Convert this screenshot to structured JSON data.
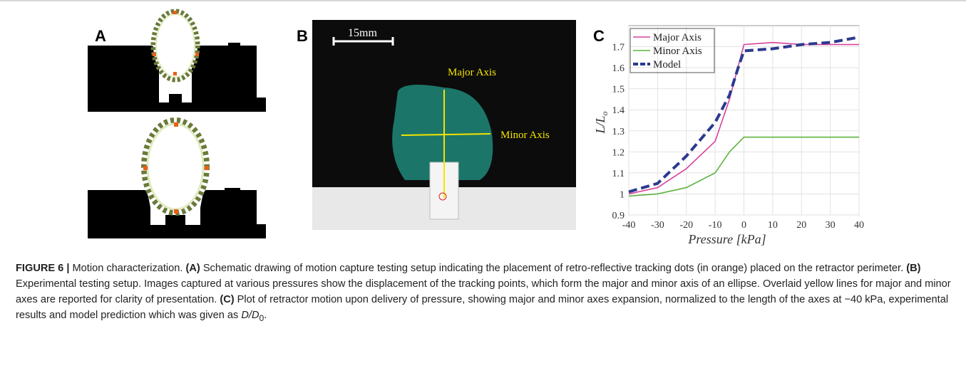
{
  "figure": {
    "panel_a": {
      "label": "A"
    },
    "panel_b": {
      "label": "B",
      "scale_bar": "15mm",
      "major_label": "Major Axis",
      "minor_label": "Minor Axis"
    },
    "panel_c": {
      "label": "C",
      "type": "line",
      "x_label": "Pressure [kPa]",
      "y_label": "L/L",
      "y_label_sub": "o",
      "xlim": [
        -40,
        40
      ],
      "xticks": [
        -40,
        -30,
        -20,
        -10,
        0,
        10,
        20,
        30,
        40
      ],
      "ylim": [
        0.9,
        1.8
      ],
      "yticks": [
        0.9,
        1,
        1.1,
        1.2,
        1.3,
        1.4,
        1.5,
        1.6,
        1.7
      ],
      "grid": true,
      "legend": "top-left",
      "series": [
        {
          "name": "Major Axis",
          "color": "#d6439a",
          "dash": false,
          "x": [
            -40,
            -30,
            -20,
            -10,
            -5,
            0,
            10,
            20,
            30,
            40
          ],
          "values": [
            1.0,
            1.03,
            1.12,
            1.25,
            1.45,
            1.71,
            1.72,
            1.71,
            1.71,
            1.71
          ]
        },
        {
          "name": "Minor Axis",
          "color": "#5db33f",
          "dash": false,
          "x": [
            -40,
            -30,
            -20,
            -10,
            -5,
            0,
            10,
            20,
            30,
            40
          ],
          "values": [
            0.99,
            1.0,
            1.03,
            1.1,
            1.2,
            1.27,
            1.27,
            1.27,
            1.27,
            1.27
          ]
        },
        {
          "name": "Model",
          "color": "#2b3a8f",
          "dash": true,
          "x": [
            -40,
            -30,
            -20,
            -10,
            -5,
            -2,
            0,
            10,
            20,
            30,
            40
          ],
          "values": [
            1.01,
            1.05,
            1.18,
            1.34,
            1.47,
            1.6,
            1.68,
            1.69,
            1.71,
            1.72,
            1.745
          ]
        }
      ]
    }
  },
  "caption": [
    "FIGURE 6 |",
    " Motion characterization. ",
    "(A)",
    " Schematic drawing of motion capture testing setup indicating the placement of retro-reflective tracking dots (in orange) placed on the retractor perimeter. ",
    "(B)",
    " Experimental testing setup. Images captured at various pressures show the displacement of the tracking points, which form the major and minor axis of an ellipse. Overlaid yellow lines for major and minor axes are reported for clarity of presentation. ",
    "(C)",
    " Plot of retractor motion upon delivery of pressure, showing major and minor axes expansion, normalized to the length of the axes at −40 kPa, experimental results and model prediction which was given as ",
    "D/D",
    "0",
    "."
  ]
}
